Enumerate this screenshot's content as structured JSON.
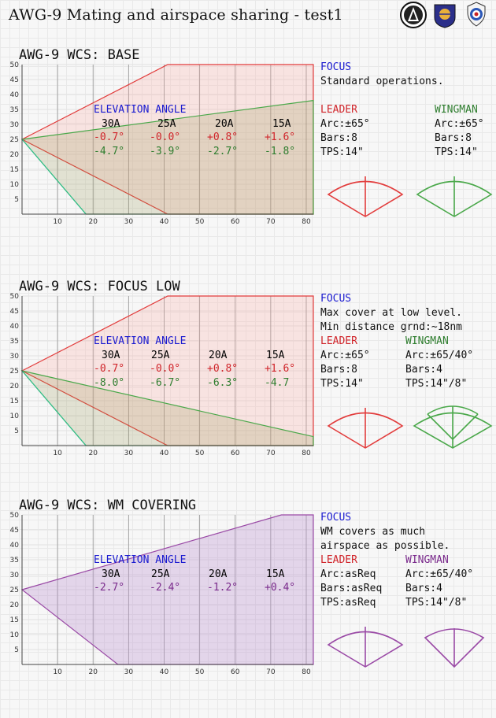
{
  "header": {
    "title": "AWG-9 Mating and airspace sharing - test1",
    "logos": [
      "squadron-patch-icon",
      "wing-badge-icon",
      "roundel-badge-icon"
    ]
  },
  "colors": {
    "leader": "#e23c3c",
    "leader_fill": "rgba(255,160,150,0.22)",
    "wingman_green": "#4aa84a",
    "wingman_green_fill": "rgba(150,150,80,0.22)",
    "teal": "#2fc08f",
    "purple": "#9a4aa6",
    "purple_fill": "rgba(190,150,210,0.35)",
    "focus_blue": "#1a1ad0"
  },
  "panels": [
    {
      "title": "AWG-9 WCS: BASE",
      "y_ticks": [
        50,
        45,
        40,
        35,
        30,
        25,
        20,
        15,
        10,
        5
      ],
      "x_ticks": [
        10,
        20,
        30,
        40,
        50,
        60,
        70,
        80
      ],
      "elevation_title": "ELEVATION ANGLE",
      "elevation": {
        "columns": [
          "30A",
          "25A",
          "20A",
          "15A"
        ],
        "leader_row": [
          "-0.7°",
          "-0.0°",
          "+0.8°",
          "+1.6°"
        ],
        "wingman_row": [
          "-4.7°",
          "-3.9°",
          "-2.7°",
          "-1.8°"
        ]
      },
      "focus_label": "FOCUS",
      "focus_lines": [
        "Standard operations."
      ],
      "leader": {
        "label": "LEADER",
        "arc": "Arc:±65°",
        "bars": "Bars:8",
        "tps": "TPS:14\""
      },
      "wingman": {
        "label": "WINGMAN",
        "arc": "Arc:±65°",
        "bars": "Bars:8",
        "tps": "TPS:14\""
      }
    },
    {
      "title": "AWG-9 WCS: FOCUS LOW",
      "y_ticks": [
        50,
        45,
        40,
        35,
        30,
        25,
        20,
        15,
        10,
        5
      ],
      "x_ticks": [
        10,
        20,
        30,
        40,
        50,
        60,
        70,
        80
      ],
      "elevation_title": "ELEVATION ANGLE",
      "elevation": {
        "columns": [
          "30A",
          "25A",
          "20A",
          "15A"
        ],
        "leader_row": [
          "-0.7°",
          "-0.0°",
          "+0.8°",
          "+1.6°"
        ],
        "wingman_row": [
          "-8.0°",
          "-6.7°",
          "-6.3°",
          "-4.7"
        ]
      },
      "focus_label": "FOCUS",
      "focus_lines": [
        "Max cover at low level.",
        "Min distance grnd:~18nm"
      ],
      "leader": {
        "label": "LEADER",
        "arc": "Arc:±65°",
        "bars": "Bars:8",
        "tps": "TPS:14\""
      },
      "wingman": {
        "label": "WINGMAN",
        "arc": "Arc:±65/40°",
        "bars": "Bars:4",
        "tps": "TPS:14\"/8\""
      }
    },
    {
      "title": "AWG-9 WCS: WM COVERING",
      "y_ticks": [
        50,
        45,
        40,
        35,
        30,
        25,
        20,
        15,
        10,
        5
      ],
      "x_ticks": [
        10,
        20,
        30,
        40,
        50,
        60,
        70,
        80
      ],
      "elevation_title": "ELEVATION ANGLE",
      "elevation": {
        "columns": [
          "30A",
          "25A",
          "20A",
          "15A"
        ],
        "wingman_row": [
          "-2.7°",
          "-2.4°",
          "-1.2°",
          "+0.4°"
        ]
      },
      "focus_label": "FOCUS",
      "focus_lines": [
        "WM covers as much",
        "airspace as possible."
      ],
      "leader": {
        "label": "LEADER",
        "arc": "Arc:asReq",
        "bars": "Bars:asReq",
        "tps": "TPS:asReq"
      },
      "wingman": {
        "label": "WINGMAN",
        "arc": "Arc:±65/40°",
        "bars": "Bars:4",
        "tps": "TPS:14\"/8\""
      }
    }
  ],
  "chart_data": [
    {
      "type": "area",
      "title": "AWG-9 WCS: BASE",
      "xlim": [
        0,
        82
      ],
      "ylim": [
        0,
        50
      ],
      "series": [
        {
          "name": "LEADER",
          "x": [
            0,
            41,
            82,
            82,
            41
          ],
          "y": [
            25,
            50,
            50,
            0,
            0
          ]
        },
        {
          "name": "WINGMAN",
          "x": [
            0,
            82,
            82,
            41,
            18
          ],
          "y": [
            25,
            38,
            0,
            0,
            0
          ]
        }
      ]
    },
    {
      "type": "area",
      "title": "AWG-9 WCS: FOCUS LOW",
      "xlim": [
        0,
        82
      ],
      "ylim": [
        0,
        50
      ],
      "series": [
        {
          "name": "LEADER",
          "x": [
            0,
            41,
            82,
            82,
            41
          ],
          "y": [
            25,
            50,
            50,
            0,
            0
          ]
        },
        {
          "name": "WINGMAN",
          "x": [
            0,
            82,
            82,
            18
          ],
          "y": [
            25,
            3,
            0,
            0
          ]
        }
      ]
    },
    {
      "type": "area",
      "title": "AWG-9 WCS: WM COVERING",
      "xlim": [
        0,
        82
      ],
      "ylim": [
        0,
        50
      ],
      "series": [
        {
          "name": "WINGMAN",
          "x": [
            0,
            73,
            82,
            82,
            27
          ],
          "y": [
            25,
            50,
            50,
            0,
            0
          ]
        }
      ]
    }
  ]
}
